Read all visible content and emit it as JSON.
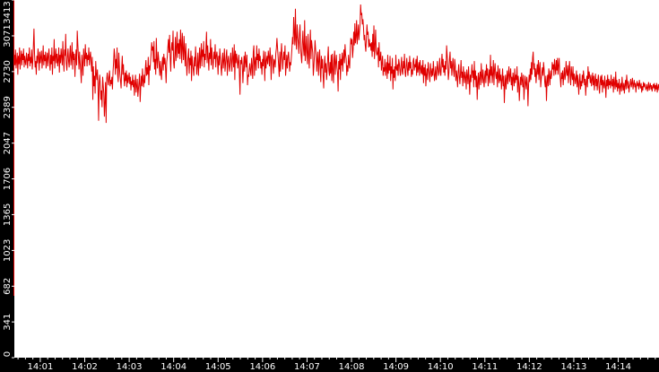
{
  "chart_data": {
    "type": "line",
    "title": "",
    "xlabel": "",
    "ylabel": "",
    "ylim": [
      0,
      3413
    ],
    "y_ticks": [
      0,
      341,
      682,
      1023,
      1365,
      1706,
      2047,
      2389,
      2730,
      3071,
      3413
    ],
    "x_ticks": [
      "14:01",
      "14:02",
      "14:03",
      "14:04",
      "14:05",
      "14:06",
      "14:07",
      "14:08",
      "14:09",
      "14:10",
      "14:11",
      "14:12",
      "14:13",
      "14:14"
    ],
    "x_range": [
      "14:00:25",
      "14:14:55"
    ],
    "grid": false,
    "legend": "none",
    "colors": {
      "line": "#e00000",
      "axis_bg": "#000000",
      "axis_text": "#ffffff",
      "plot_bg": "#ffffff"
    },
    "series": [
      {
        "sample_interval_sec": 1,
        "values": [
          2890,
          2790,
          2940,
          2760,
          2830,
          2910,
          2700,
          2880,
          2800,
          2960,
          2750,
          2850,
          2930,
          2790,
          2900,
          2840,
          2950,
          2770,
          2880,
          2820,
          2790,
          2910,
          2850,
          2760,
          2900,
          2830,
          2960,
          2780,
          2870,
          2810,
          2940,
          2750,
          2830,
          2980,
          3140,
          2900,
          2770,
          2830,
          2700,
          2880,
          2810,
          2950,
          2860,
          2740,
          2920,
          2810,
          2870,
          2930,
          2760,
          2840,
          2980,
          2790,
          2890,
          2830,
          2920,
          2760,
          2850,
          2910,
          2780,
          2870,
          2950,
          2820,
          2740,
          2890,
          2800,
          2960,
          2700,
          2880,
          2830,
          3040,
          2760,
          2870,
          2950,
          2810,
          2900,
          2780,
          2840,
          2960,
          2720,
          2890,
          2810,
          2950,
          2870,
          2790,
          3020,
          2860,
          2730,
          2940,
          2880,
          3090,
          2810,
          2740,
          2870,
          2950,
          2830,
          2770,
          2890,
          2980,
          2790,
          2860,
          3010,
          2750,
          2920,
          2840,
          2900,
          2680,
          2850,
          2940,
          2790,
          3120,
          2990,
          2880,
          2750,
          2920,
          2810,
          2740,
          2620,
          2890,
          2810,
          2690,
          2950,
          2870,
          2780,
          2990,
          2850,
          2910,
          2780,
          2890,
          2840,
          2960,
          2790,
          2870,
          2920,
          2820,
          2730,
          2870,
          2460,
          2780,
          2590,
          2690,
          2520,
          2830,
          2710,
          2650,
          2750,
          2570,
          2260,
          2620,
          2700,
          2590,
          2460,
          2550,
          2390,
          2680,
          2600,
          2520,
          2300,
          2440,
          2630,
          2240,
          2660,
          2720,
          2650,
          2600,
          2680,
          2740,
          2590,
          2650,
          2610,
          2680,
          2560,
          2730,
          2820,
          2950,
          2880,
          2700,
          2850,
          2760,
          2960,
          2700,
          2630,
          2910,
          2780,
          2700,
          2640,
          2570,
          2760,
          2880,
          2700,
          2800,
          2650,
          2590,
          2720,
          2640,
          2740,
          2580,
          2700,
          2620,
          2660,
          2720,
          2610,
          2680,
          2550,
          2640,
          2600,
          2700,
          2580,
          2650,
          2500,
          2620,
          2700,
          2530,
          2590,
          2660,
          2490,
          2560,
          2630,
          2710,
          2440,
          2580,
          2690,
          2590,
          2760,
          2640,
          2580,
          2700,
          2620,
          2760,
          2840,
          2690,
          2770,
          2700,
          2870,
          2600,
          2790,
          2740,
          2830,
          2900,
          3010,
          2930,
          2970,
          2820,
          3020,
          2750,
          2850,
          2700,
          3050,
          2840,
          2760,
          2920,
          2860,
          2790,
          2690,
          2830,
          2720,
          2650,
          2810,
          2870,
          2740,
          2900,
          2800,
          2860,
          2760,
          2620,
          2820,
          2870,
          2960,
          3040,
          2910,
          3080,
          2860,
          2730,
          2940,
          3010,
          2930,
          3120,
          2820,
          2760,
          2890,
          3060,
          2830,
          2970,
          3110,
          2860,
          3000,
          2900,
          3040,
          2850,
          3130,
          2990,
          2810,
          3100,
          2950,
          2840,
          3070,
          2920,
          2780,
          3000,
          2840,
          2690,
          2810,
          2870,
          2950,
          2710,
          2860,
          2790,
          2930,
          2640,
          2880,
          2800,
          2750,
          2690,
          2870,
          2780,
          2970,
          2850,
          2700,
          2790,
          2910,
          2690,
          2820,
          2960,
          2760,
          2880,
          3000,
          2780,
          2940,
          2870,
          3020,
          2770,
          2900,
          2840,
          2960,
          3110,
          2810,
          2980,
          2860,
          2740,
          2910,
          2850,
          3040,
          2790,
          2960,
          2880,
          2750,
          2820,
          2920,
          2850,
          2990,
          2770,
          2880,
          2920,
          2840,
          2700,
          2880,
          2790,
          2950,
          2860,
          2770,
          2690,
          2830,
          2910,
          2760,
          2840,
          2950,
          2730,
          2800,
          2880,
          2940,
          2690,
          2830,
          2880,
          2780,
          2730,
          2840,
          2910,
          2810,
          2730,
          2960,
          2860,
          2770,
          2990,
          2650,
          2930,
          2810,
          2900,
          2850,
          2760,
          2830,
          2890,
          2700,
          2510,
          2840,
          2800,
          2870,
          2790,
          2620,
          2750,
          2880,
          2730,
          2920,
          2820,
          2770,
          2890,
          2600,
          2700,
          2680,
          2750,
          2810,
          2730,
          2690,
          2860,
          2780,
          2660,
          2920,
          2980,
          2690,
          2820,
          2870,
          2740,
          2980,
          2840,
          2900,
          2760,
          2950,
          2830,
          2880,
          2760,
          2820,
          2700,
          2850,
          2780,
          2930,
          2820,
          2640,
          2920,
          2760,
          2840,
          2880,
          2800,
          2930,
          2870,
          2780,
          2960,
          2860,
          2650,
          2870,
          2890,
          2800,
          2710,
          2850,
          2830,
          2770,
          2900,
          2950,
          3050,
          2960,
          2870,
          2780,
          2680,
          2920,
          2730,
          2880,
          3000,
          2870,
          2750,
          2850,
          2920,
          2840,
          2980,
          2690,
          2780,
          2890,
          2760,
          2860,
          2920,
          2840,
          2730,
          2820,
          2790,
          2870,
          2950,
          3060,
          2990,
          3250,
          3100,
          2980,
          3330,
          3030,
          2940,
          3180,
          3060,
          3010,
          2900,
          3090,
          3180,
          2960,
          2880,
          2810,
          3000,
          3120,
          2950,
          2880,
          3220,
          2830,
          2940,
          3070,
          2880,
          2800,
          3090,
          2910,
          2760,
          2960,
          3130,
          2850,
          3030,
          2970,
          2910,
          2690,
          2780,
          2890,
          3030,
          2940,
          2890,
          2730,
          2850,
          2920,
          2690,
          2830,
          2940,
          2750,
          2630,
          2880,
          2760,
          2850,
          2690,
          2570,
          2780,
          2880,
          2720,
          2810,
          2650,
          2740,
          2860,
          2970,
          2740,
          2690,
          2820,
          2710,
          2890,
          2640,
          2900,
          2750,
          2620,
          2850,
          2930,
          2700,
          2810,
          2890,
          2770,
          2720,
          2540,
          2830,
          2750,
          2900,
          2650,
          2850,
          2790,
          2910,
          2730,
          2860,
          2940,
          2810,
          2990,
          2890,
          2850,
          2690,
          2790,
          2730,
          2890,
          2810,
          2760,
          2930,
          3050,
          2990,
          3040,
          2860,
          2940,
          3110,
          2980,
          3190,
          3000,
          3060,
          3220,
          2990,
          3080,
          3180,
          3030,
          3110,
          3180,
          3370,
          3270,
          3290,
          3180,
          3230,
          3150,
          3030,
          3080,
          2980,
          2920,
          3050,
          3180,
          3080,
          3110,
          2960,
          3040,
          2970,
          3000,
          2930,
          3010,
          2870,
          3090,
          2920,
          3170,
          2850,
          2980,
          3130,
          2930,
          2890,
          2900,
          2960,
          2770,
          3010,
          2830,
          2850,
          2920,
          2740,
          2810,
          2880,
          2690,
          2770,
          2730,
          2850,
          2690,
          2760,
          2820,
          2660,
          2890,
          2710,
          2810,
          2740,
          2880,
          2640,
          2780,
          2710,
          2860,
          2560,
          2750,
          2670,
          2780,
          2640,
          2890,
          2760,
          2740,
          2800,
          2690,
          2850,
          2810,
          2740,
          2690,
          2790,
          2870,
          2730,
          2700,
          2830,
          2760,
          2900,
          2720,
          2680,
          2780,
          2860,
          2750,
          2690,
          2820,
          2740,
          2880,
          2760,
          2820,
          2680,
          2750,
          2700,
          2830,
          2860,
          2740,
          2800,
          2770,
          2850,
          2690,
          2880,
          2720,
          2760,
          2820,
          2690,
          2840,
          2760,
          2710,
          2790,
          2700,
          2840,
          2620,
          2770,
          2690,
          2800,
          2590,
          2700,
          2760,
          2650,
          2820,
          2750,
          2700,
          2630,
          2810,
          2730,
          2680,
          2760,
          2690,
          2830,
          2740,
          2640,
          2700,
          2780,
          2650,
          2720,
          2830,
          2760,
          2690,
          2740,
          2860,
          2720,
          2690,
          2800,
          2900,
          2770,
          2850,
          2720,
          2790,
          2690,
          2830,
          2750,
          2980,
          2880,
          2790,
          2650,
          2720,
          2850,
          2920,
          2760,
          2830,
          2690,
          2790,
          2860,
          2740,
          2680,
          2850,
          2790,
          2640,
          2740,
          2680,
          2580,
          2720,
          2800,
          2690,
          2610,
          2710,
          2840,
          2670,
          2730,
          2590,
          2780,
          2690,
          2620,
          2730,
          2680,
          2560,
          2750,
          2690,
          2610,
          2780,
          2650,
          2510,
          2700,
          2630,
          2720,
          2800,
          2670,
          2740,
          2580,
          2830,
          2650,
          2740,
          2580,
          2690,
          2460,
          2630,
          2720,
          2560,
          2670,
          2730,
          2600,
          2810,
          2690,
          2620,
          2750,
          2660,
          2580,
          2690,
          2740,
          2620,
          2800,
          2690,
          2760,
          2590,
          2680,
          2750,
          2620,
          2890,
          2690,
          2780,
          2620,
          2710,
          2840,
          2600,
          2750,
          2810,
          2700,
          2660,
          2730,
          2580,
          2790,
          2680,
          2620,
          2760,
          2640,
          2700,
          2560,
          2650,
          2760,
          2590,
          2690,
          2430,
          2600,
          2700,
          2560,
          2660,
          2740,
          2610,
          2700,
          2780,
          2630,
          2690,
          2760,
          2600,
          2680,
          2550,
          2720,
          2660,
          2590,
          2760,
          2620,
          2700,
          2650,
          2780,
          2530,
          2690,
          2620,
          2450,
          2590,
          2680,
          2600,
          2720,
          2650,
          2580,
          2700,
          2460,
          2580,
          2690,
          2620,
          2560,
          2680,
          2610,
          2400,
          2600,
          2700,
          2630,
          2760,
          2650,
          2820,
          2700,
          2860,
          2920,
          2750,
          2810,
          2680,
          2760,
          2620,
          2720,
          2800,
          2700,
          2840,
          2650,
          2760,
          2820,
          2580,
          2660,
          2720,
          2770,
          2690,
          2820,
          2750,
          2630,
          2580,
          2690,
          2450,
          2620,
          2700,
          2590,
          2760,
          2680,
          2600,
          2740,
          2660,
          2700,
          2820,
          2750,
          2800,
          2690,
          2850,
          2760,
          2700,
          2840,
          2740,
          2860,
          2700,
          2790,
          2860,
          2720,
          2660,
          2580,
          2720,
          2660,
          2740,
          2600,
          2690,
          2770,
          2650,
          2690,
          2830,
          2720,
          2690,
          2790,
          2620,
          2740,
          2830,
          2700,
          2600,
          2780,
          2700,
          2650,
          2780,
          2590,
          2710,
          2680,
          2610,
          2660,
          2740,
          2580,
          2700,
          2620,
          2510,
          2650,
          2710,
          2560,
          2640,
          2590,
          2700,
          2620,
          2740,
          2680,
          2600,
          2660,
          2500,
          2620,
          2690,
          2580,
          2780,
          2660,
          2730,
          2680,
          2620,
          2700,
          2590,
          2650,
          2720,
          2600,
          2690,
          2550,
          2640,
          2710,
          2590,
          2660,
          2550,
          2650,
          2700,
          2580,
          2520,
          2630,
          2690,
          2600,
          2700,
          2530,
          2650,
          2620,
          2570,
          2690,
          2600,
          2480,
          2650,
          2590,
          2700,
          2560,
          2660,
          2600,
          2640,
          2570,
          2700,
          2610,
          2590,
          2660,
          2530,
          2680,
          2610,
          2560,
          2730,
          2580,
          2650,
          2540,
          2620,
          2570,
          2660,
          2510,
          2590,
          2620,
          2540,
          2680,
          2590,
          2550,
          2620,
          2520,
          2600,
          2650,
          2560,
          2700,
          2620,
          2570,
          2640,
          2530,
          2590,
          2610,
          2660,
          2580,
          2620,
          2670,
          2560,
          2610,
          2650,
          2580,
          2620,
          2530,
          2600,
          2640,
          2590,
          2620,
          2560,
          2650,
          2600,
          2570,
          2620,
          2530,
          2590,
          2550,
          2630,
          2580,
          2620,
          2600,
          2560,
          2570,
          2610,
          2540,
          2580,
          2630,
          2550,
          2590,
          2620,
          2560,
          2600,
          2540,
          2580,
          2610,
          2570,
          2620,
          2540,
          2600,
          2560,
          2620,
          2530,
          2580,
          2610,
          2550
        ]
      }
    ]
  }
}
